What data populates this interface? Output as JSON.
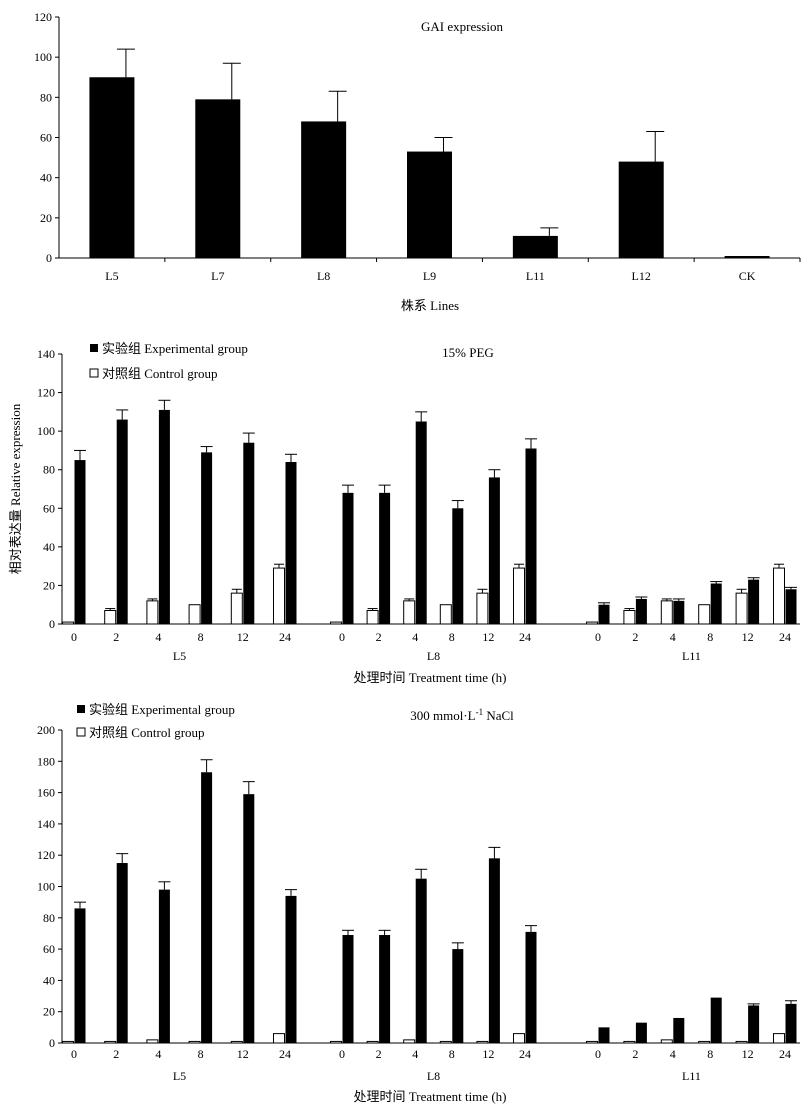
{
  "chart_data": [
    {
      "type": "bar",
      "title": "GAI expression",
      "xlabel": "株系 Lines",
      "ylabel": "",
      "ylim": [
        0,
        120
      ],
      "yticks": [
        0,
        20,
        40,
        60,
        80,
        100,
        120
      ],
      "categories": [
        "L5",
        "L7",
        "L8",
        "L9",
        "L11",
        "L12",
        "CK"
      ],
      "values": [
        90,
        79,
        68,
        53,
        11,
        48,
        1
      ],
      "errors": [
        14,
        18,
        15,
        7,
        4,
        15,
        0
      ],
      "grid": false
    },
    {
      "type": "bar",
      "title": "15% PEG",
      "xlabel": "处理时间 Treatment time (h)",
      "ylabel": "相对表达量 Relative expression",
      "ylim": [
        0,
        140
      ],
      "yticks": [
        0,
        20,
        40,
        60,
        80,
        100,
        120,
        140
      ],
      "legend_position": "top-left",
      "groups": [
        "L5",
        "L8",
        "L11"
      ],
      "x": [
        "0",
        "2",
        "4",
        "8",
        "12",
        "24"
      ],
      "series": [
        {
          "name": "实验组 Experimental group",
          "color": "#000000",
          "values": [
            [
              85,
              106,
              111,
              89,
              94,
              84
            ],
            [
              68,
              68,
              105,
              60,
              76,
              91
            ],
            [
              10,
              13,
              12,
              21,
              23,
              18
            ]
          ],
          "errors": [
            [
              5,
              5,
              5,
              3,
              5,
              4
            ],
            [
              4,
              4,
              5,
              4,
              4,
              5
            ],
            [
              1,
              1,
              1,
              1,
              1,
              1
            ]
          ]
        },
        {
          "name": "对照组 Control group",
          "color": "#ffffff",
          "values": [
            [
              1,
              7,
              12,
              10,
              16,
              29
            ],
            [
              1,
              7,
              12,
              10,
              16,
              29
            ],
            [
              1,
              7,
              12,
              10,
              16,
              29
            ]
          ],
          "errors": [
            [
              0,
              1,
              1,
              0,
              2,
              2
            ],
            [
              0,
              1,
              1,
              0,
              2,
              2
            ],
            [
              0,
              1,
              1,
              0,
              2,
              2
            ]
          ]
        }
      ],
      "grid": false
    },
    {
      "type": "bar",
      "title": "300 mmol·L",
      "title_superscript": "-1",
      "title_suffix": " NaCl",
      "xlabel": "处理时间 Treatment time (h)",
      "ylabel": "",
      "ylim": [
        0,
        200
      ],
      "yticks": [
        0,
        20,
        40,
        60,
        80,
        100,
        120,
        140,
        160,
        180,
        200
      ],
      "legend_position": "top-left",
      "groups": [
        "L5",
        "L8",
        "L11"
      ],
      "x": [
        "0",
        "2",
        "4",
        "8",
        "12",
        "24"
      ],
      "series": [
        {
          "name": "实验组 Experimental group",
          "color": "#000000",
          "values": [
            [
              86,
              115,
              98,
              173,
              159,
              94
            ],
            [
              69,
              69,
              105,
              60,
              118,
              71
            ],
            [
              10,
              13,
              16,
              29,
              24,
              25
            ]
          ],
          "errors": [
            [
              4,
              6,
              5,
              8,
              8,
              4
            ],
            [
              3,
              3,
              6,
              4,
              7,
              4
            ],
            [
              0,
              0,
              0,
              0,
              1,
              2
            ]
          ]
        },
        {
          "name": "对照组 Control group",
          "color": "#ffffff",
          "values": [
            [
              1,
              1,
              2,
              1,
              1,
              6
            ],
            [
              1,
              1,
              2,
              1,
              1,
              6
            ],
            [
              1,
              1,
              2,
              1,
              1,
              6
            ]
          ],
          "errors": [
            [
              0,
              0,
              0,
              0,
              0,
              0
            ],
            [
              0,
              0,
              0,
              0,
              0,
              0
            ],
            [
              0,
              0,
              0,
              0,
              0,
              0
            ]
          ]
        }
      ],
      "grid": false
    }
  ]
}
